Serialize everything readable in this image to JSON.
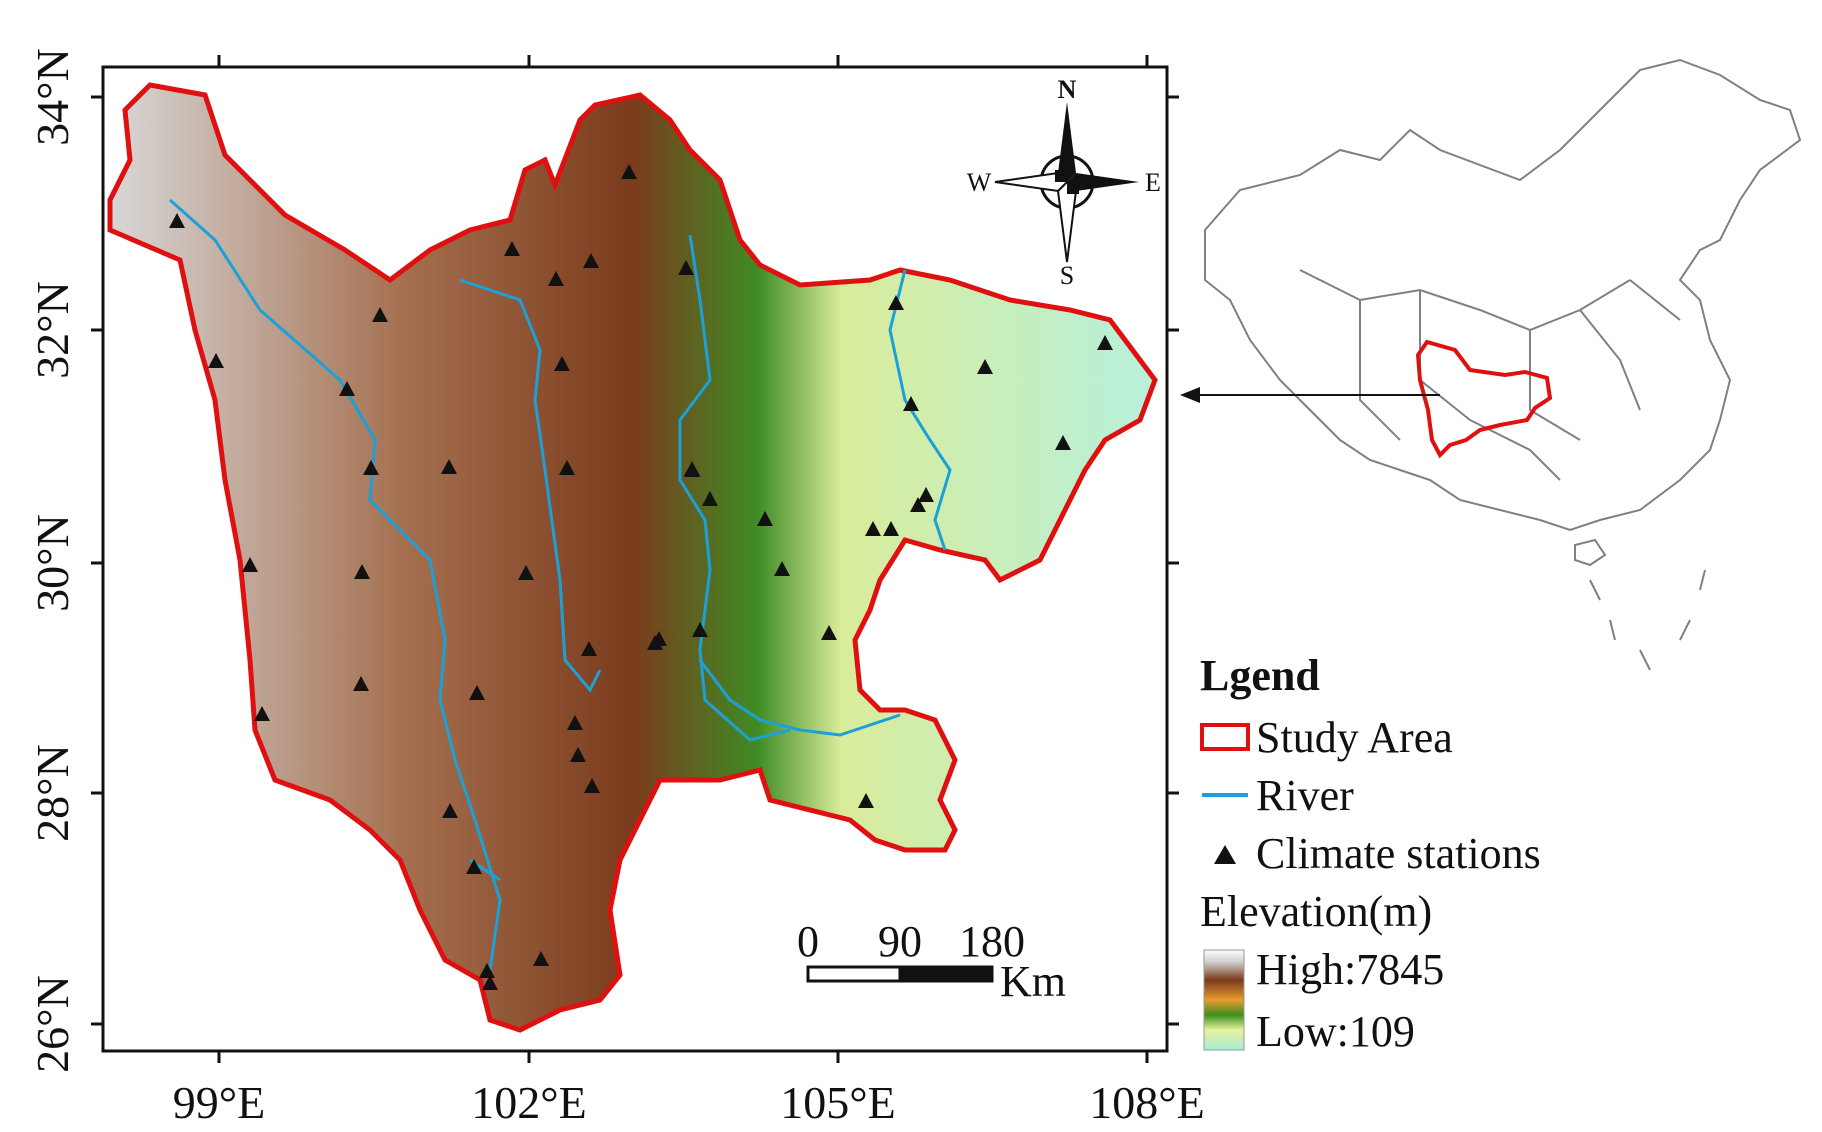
{
  "map": {
    "x_axis_labels": [
      "99°E",
      "102°E",
      "105°E",
      "108°E"
    ],
    "y_axis_labels": [
      "34°N",
      "32°N",
      "30°N",
      "28°N",
      "26°N"
    ]
  },
  "compass": {
    "north": "N",
    "south": "S",
    "east": "E",
    "west": "W"
  },
  "scale_bar": {
    "labels": [
      "0",
      "90",
      "180"
    ],
    "unit": "Km"
  },
  "legend": {
    "title": "Lgend",
    "study_area": "Study Area",
    "river": "River",
    "climate_stations": "Climate stations",
    "elevation_title": "Elevation(m)",
    "elevation_high": "High:7845",
    "elevation_low": "Low:109"
  },
  "colors": {
    "study_area_border": "#e01010",
    "river": "#1ca0d8",
    "high_elevation": "#ffffff",
    "mid_elevation": "#7a3b1c",
    "low_elevation": "#a8ecd8"
  },
  "stations": [
    [
      177,
      222
    ],
    [
      216,
      362
    ],
    [
      250,
      566
    ],
    [
      262,
      715
    ],
    [
      347,
      390
    ],
    [
      380,
      316
    ],
    [
      371,
      469
    ],
    [
      362,
      573
    ],
    [
      361,
      685
    ],
    [
      449,
      468
    ],
    [
      477,
      694
    ],
    [
      450,
      812
    ],
    [
      474,
      868
    ],
    [
      487,
      972
    ],
    [
      490,
      984
    ],
    [
      512,
      250
    ],
    [
      556,
      280
    ],
    [
      526,
      574
    ],
    [
      562,
      365
    ],
    [
      567,
      469
    ],
    [
      589,
      650
    ],
    [
      578,
      756
    ],
    [
      591,
      262
    ],
    [
      629,
      173
    ],
    [
      686,
      269
    ],
    [
      692,
      471
    ],
    [
      659,
      640
    ],
    [
      692,
      470
    ],
    [
      710,
      500
    ],
    [
      700,
      631
    ],
    [
      655,
      644
    ],
    [
      575,
      724
    ],
    [
      592,
      787
    ],
    [
      541,
      960
    ],
    [
      829,
      634
    ],
    [
      866,
      802
    ],
    [
      873,
      530
    ],
    [
      896,
      304
    ],
    [
      911,
      405
    ],
    [
      918,
      506
    ],
    [
      926,
      496
    ],
    [
      985,
      368
    ],
    [
      1063,
      444
    ],
    [
      1105,
      344
    ],
    [
      891,
      530
    ],
    [
      765,
      520
    ],
    [
      782,
      570
    ]
  ]
}
